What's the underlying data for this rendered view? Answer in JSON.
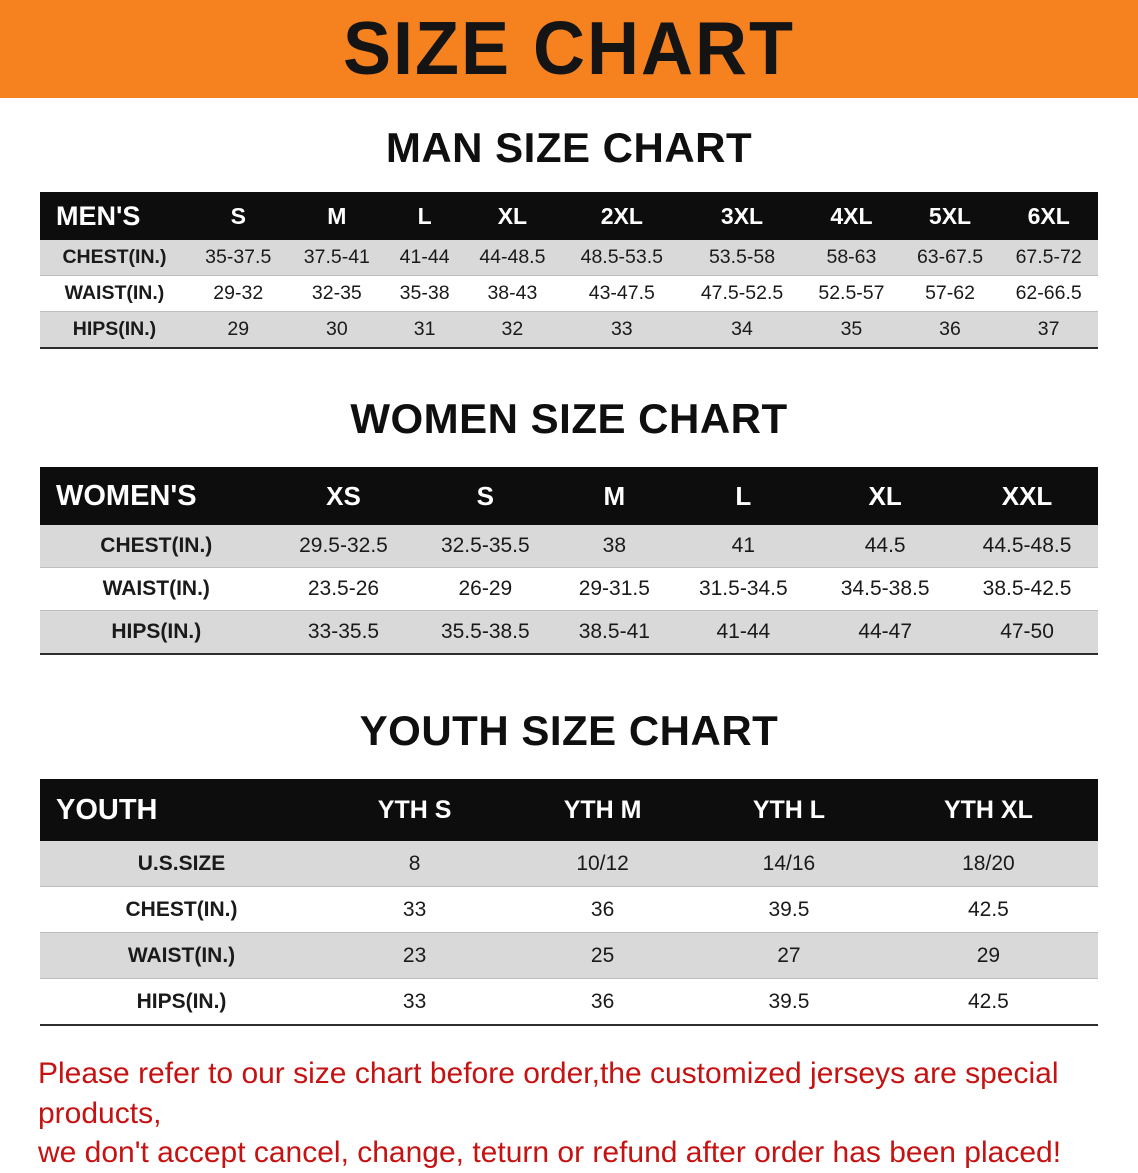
{
  "banner": {
    "title": "SIZE CHART",
    "bg_color": "#f5821f"
  },
  "sections": [
    {
      "id": "men",
      "heading": "MAN SIZE CHART",
      "header": [
        "MEN'S",
        "S",
        "M",
        "L",
        "XL",
        "2XL",
        "3XL",
        "4XL",
        "5XL",
        "6XL"
      ],
      "rows": [
        {
          "label": "CHEST(IN.)",
          "values": [
            "35-37.5",
            "37.5-41",
            "41-44",
            "44-48.5",
            "48.5-53.5",
            "53.5-58",
            "58-63",
            "63-67.5",
            "67.5-72"
          ]
        },
        {
          "label": "WAIST(IN.)",
          "values": [
            "29-32",
            "32-35",
            "35-38",
            "38-43",
            "43-47.5",
            "47.5-52.5",
            "52.5-57",
            "57-62",
            "62-66.5"
          ]
        },
        {
          "label": "HIPS(IN.)",
          "values": [
            "29",
            "30",
            "31",
            "32",
            "33",
            "34",
            "35",
            "36",
            "37"
          ]
        }
      ]
    },
    {
      "id": "women",
      "heading": "WOMEN SIZE CHART",
      "header": [
        "WOMEN'S",
        "XS",
        "S",
        "M",
        "L",
        "XL",
        "XXL"
      ],
      "rows": [
        {
          "label": "CHEST(IN.)",
          "values": [
            "29.5-32.5",
            "32.5-35.5",
            "38",
            "41",
            "44.5",
            "44.5-48.5"
          ]
        },
        {
          "label": "WAIST(IN.)",
          "values": [
            "23.5-26",
            "26-29",
            "29-31.5",
            "31.5-34.5",
            "34.5-38.5",
            "38.5-42.5"
          ]
        },
        {
          "label": "HIPS(IN.)",
          "values": [
            "33-35.5",
            "35.5-38.5",
            "38.5-41",
            "41-44",
            "44-47",
            "47-50"
          ]
        }
      ]
    },
    {
      "id": "youth",
      "heading": "YOUTH SIZE CHART",
      "header": [
        "YOUTH",
        "YTH S",
        "YTH M",
        "YTH L",
        "YTH XL"
      ],
      "rows": [
        {
          "label": "U.S.SIZE",
          "values": [
            "8",
            "10/12",
            "14/16",
            "18/20"
          ]
        },
        {
          "label": "CHEST(IN.)",
          "values": [
            "33",
            "36",
            "39.5",
            "42.5"
          ]
        },
        {
          "label": "WAIST(IN.)",
          "values": [
            "23",
            "25",
            "27",
            "29"
          ]
        },
        {
          "label": "HIPS(IN.)",
          "values": [
            "33",
            "36",
            "39.5",
            "42.5"
          ]
        }
      ]
    }
  ],
  "disclaimer": {
    "color": "#c51212",
    "lines": [
      "Please refer to our size chart before order,the customized jerseys are special products,",
      "we don't accept cancel, change, teturn or refund after order has been placed!"
    ]
  }
}
